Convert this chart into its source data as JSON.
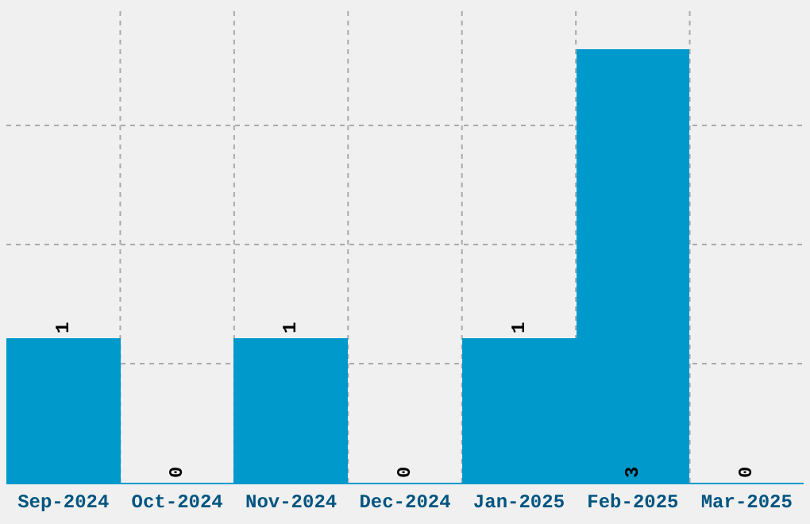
{
  "chart_data": {
    "type": "bar",
    "categories": [
      "Sep-2024",
      "Oct-2024",
      "Nov-2024",
      "Dec-2024",
      "Jan-2025",
      "Feb-2025",
      "Mar-2025"
    ],
    "values": [
      1,
      0,
      1,
      0,
      1,
      3,
      0
    ],
    "color": "#0099cc",
    "data_labels": true,
    "grid": true,
    "ylim": [
      0,
      3.3
    ],
    "yticks": [
      {
        "value": 0,
        "label": null
      },
      {
        "value": 0.825,
        "label": null
      },
      {
        "value": 1.65,
        "label": null
      },
      {
        "value": 2.475,
        "label": null
      }
    ],
    "tick_labels": "x"
  }
}
